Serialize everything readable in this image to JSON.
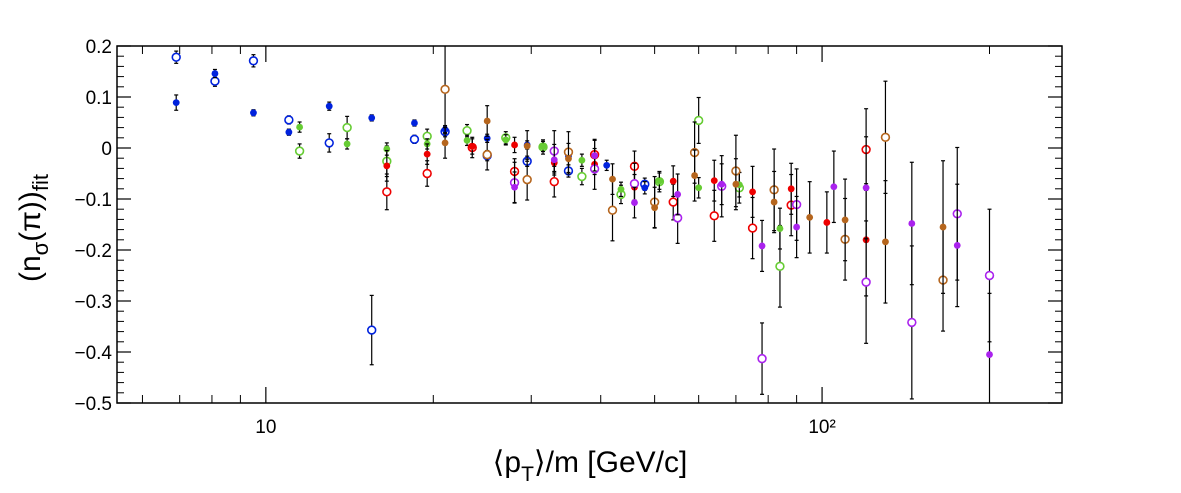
{
  "chart_data": {
    "type": "scatter",
    "xscale": "log",
    "xlim": [
      5.4,
      270
    ],
    "ylim": [
      -0.5,
      0.2
    ],
    "x_ticks": [
      10,
      100
    ],
    "x_tick_labels": [
      "10",
      "10²"
    ],
    "y_ticks": [
      0.2,
      0.1,
      0,
      -0.1,
      -0.2,
      -0.3,
      -0.4,
      -0.5
    ],
    "y_tick_labels": [
      "0.2",
      "0.1",
      "0",
      "−0.1",
      "−0.2",
      "−0.3",
      "−0.4",
      "−0.5"
    ],
    "xlabel": "⟨p_T⟩/m [GeV/c]",
    "ylabel": "(n_σ(π))_fit",
    "grid": false,
    "legend": "none",
    "series": [
      {
        "color": "#0022dd",
        "marker": "open",
        "points": [
          [
            6.9,
            0.178,
            0.012
          ],
          [
            8.1,
            0.131,
            0.01
          ],
          [
            9.5,
            0.171,
            0.012
          ],
          [
            11.0,
            0.055,
            0.008
          ],
          [
            13.0,
            0.01,
            0.018
          ],
          [
            15.5,
            -0.357,
            0.068
          ],
          [
            18.5,
            0.017,
            0.008
          ],
          [
            21.0,
            0.032,
            0.01
          ],
          [
            25.0,
            -0.015,
            0.01
          ],
          [
            29.5,
            -0.026,
            0.01
          ],
          [
            35.0,
            -0.045,
            0.012
          ],
          [
            48.0,
            -0.071,
            0.012
          ]
        ]
      },
      {
        "color": "#0022dd",
        "marker": "filled",
        "points": [
          [
            6.9,
            0.089,
            0.015
          ],
          [
            8.1,
            0.146,
            0.008
          ],
          [
            9.5,
            0.069,
            0.006
          ],
          [
            11.0,
            0.031,
            0.006
          ],
          [
            13.0,
            0.082,
            0.008
          ],
          [
            15.5,
            0.059,
            0.006
          ],
          [
            18.5,
            0.049,
            0.006
          ],
          [
            21.0,
            0.036,
            0.008
          ],
          [
            25.0,
            0.019,
            0.008
          ],
          [
            29.5,
            0.006,
            0.008
          ],
          [
            35.0,
            -0.016,
            0.008
          ],
          [
            41.0,
            -0.034,
            0.01
          ],
          [
            48.0,
            -0.078,
            0.012
          ]
        ]
      },
      {
        "color": "#66cc33",
        "marker": "open",
        "points": [
          [
            11.5,
            -0.006,
            0.014
          ],
          [
            14.0,
            0.04,
            0.022
          ],
          [
            16.5,
            -0.026,
            0.03
          ],
          [
            19.5,
            0.023,
            0.014
          ],
          [
            23.0,
            0.034,
            0.012
          ],
          [
            27.0,
            0.02,
            0.012
          ],
          [
            31.5,
            0.002,
            0.014
          ],
          [
            37.0,
            -0.056,
            0.016
          ],
          [
            43.5,
            -0.091,
            0.018
          ],
          [
            51.0,
            -0.066,
            0.02
          ],
          [
            60.0,
            0.054,
            0.045
          ],
          [
            71.0,
            -0.078,
            0.03
          ],
          [
            84.0,
            -0.232,
            0.08
          ]
        ]
      },
      {
        "color": "#66cc33",
        "marker": "filled",
        "points": [
          [
            11.5,
            0.041,
            0.01
          ],
          [
            14.0,
            0.008,
            0.01
          ],
          [
            16.5,
            -0.002,
            0.012
          ],
          [
            19.5,
            0.008,
            0.01
          ],
          [
            23.0,
            0.015,
            0.01
          ],
          [
            27.0,
            0.016,
            0.01
          ],
          [
            31.5,
            0.003,
            0.01
          ],
          [
            37.0,
            -0.024,
            0.012
          ],
          [
            43.5,
            -0.081,
            0.014
          ],
          [
            51.0,
            -0.065,
            0.016
          ],
          [
            60.0,
            -0.078,
            0.02
          ],
          [
            71.0,
            -0.072,
            0.024
          ],
          [
            84.0,
            -0.158,
            0.04
          ]
        ]
      },
      {
        "color": "#ee0000",
        "marker": "open",
        "points": [
          [
            16.5,
            -0.086,
            0.035
          ],
          [
            19.5,
            -0.05,
            0.025
          ],
          [
            23.5,
            0.001,
            0.02
          ],
          [
            28.0,
            -0.046,
            0.025
          ],
          [
            33.0,
            -0.066,
            0.03
          ],
          [
            39.0,
            -0.013,
            0.03
          ],
          [
            46.0,
            -0.036,
            0.03
          ],
          [
            54.0,
            -0.106,
            0.035
          ],
          [
            64.0,
            -0.133,
            0.05
          ],
          [
            75.0,
            -0.157,
            0.06
          ],
          [
            88.0,
            -0.112,
            0.06
          ],
          [
            120.0,
            -0.003,
            0.08
          ]
        ]
      },
      {
        "color": "#ee0000",
        "marker": "filled",
        "points": [
          [
            16.5,
            -0.035,
            0.03
          ],
          [
            19.5,
            -0.012,
            0.02
          ],
          [
            23.5,
            0.003,
            0.015
          ],
          [
            28.0,
            0.006,
            0.015
          ],
          [
            33.0,
            -0.029,
            0.02
          ],
          [
            39.0,
            -0.032,
            0.02
          ],
          [
            46.0,
            -0.077,
            0.025
          ],
          [
            54.0,
            -0.065,
            0.03
          ],
          [
            64.0,
            -0.064,
            0.04
          ],
          [
            75.0,
            -0.086,
            0.05
          ],
          [
            88.0,
            -0.08,
            0.05
          ],
          [
            102.0,
            -0.146,
            0.06
          ],
          [
            120.0,
            -0.18,
            0.11
          ]
        ]
      },
      {
        "color": "#b5651d",
        "marker": "open",
        "points": [
          [
            21.0,
            0.115,
            0.085
          ],
          [
            25.0,
            -0.013,
            0.03
          ],
          [
            29.5,
            -0.062,
            0.04
          ],
          [
            35.0,
            -0.008,
            0.04
          ],
          [
            42.0,
            -0.122,
            0.06
          ],
          [
            50.0,
            -0.106,
            0.05
          ],
          [
            59.0,
            -0.009,
            0.06
          ],
          [
            70.0,
            -0.045,
            0.07
          ],
          [
            82.0,
            -0.082,
            0.08
          ],
          [
            110.0,
            -0.179,
            0.08
          ],
          [
            130.0,
            0.021,
            0.11
          ],
          [
            165.0,
            -0.259,
            0.1
          ]
        ]
      },
      {
        "color": "#b5651d",
        "marker": "filled",
        "points": [
          [
            21.0,
            0.01,
            0.03
          ],
          [
            25.0,
            0.053,
            0.03
          ],
          [
            29.5,
            0.004,
            0.03
          ],
          [
            35.0,
            -0.021,
            0.03
          ],
          [
            42.0,
            -0.061,
            0.03
          ],
          [
            50.0,
            -0.117,
            0.04
          ],
          [
            59.0,
            -0.054,
            0.05
          ],
          [
            70.0,
            -0.071,
            0.05
          ],
          [
            82.0,
            -0.106,
            0.06
          ],
          [
            95.0,
            -0.136,
            0.07
          ],
          [
            110.0,
            -0.141,
            0.08
          ],
          [
            130.0,
            -0.184,
            0.12
          ],
          [
            165.0,
            -0.155,
            0.13
          ]
        ]
      },
      {
        "color": "#aa22ee",
        "marker": "open",
        "points": [
          [
            28.0,
            -0.068,
            0.04
          ],
          [
            33.0,
            -0.006,
            0.04
          ],
          [
            39.0,
            -0.041,
            0.04
          ],
          [
            46.0,
            -0.07,
            0.04
          ],
          [
            55.0,
            -0.137,
            0.05
          ],
          [
            66.0,
            -0.075,
            0.06
          ],
          [
            78.0,
            -0.413,
            0.07
          ],
          [
            90.0,
            -0.111,
            0.07
          ],
          [
            120.0,
            -0.263,
            0.12
          ],
          [
            145.0,
            -0.342,
            0.15
          ],
          [
            175.0,
            -0.129,
            0.13
          ],
          [
            200.0,
            -0.25,
            0.13
          ]
        ]
      },
      {
        "color": "#aa22ee",
        "marker": "filled",
        "points": [
          [
            28.0,
            -0.077,
            0.03
          ],
          [
            33.0,
            -0.023,
            0.03
          ],
          [
            39.0,
            -0.015,
            0.03
          ],
          [
            46.0,
            -0.107,
            0.03
          ],
          [
            55.0,
            -0.091,
            0.04
          ],
          [
            66.0,
            -0.071,
            0.04
          ],
          [
            78.0,
            -0.192,
            0.05
          ],
          [
            90.0,
            -0.155,
            0.06
          ],
          [
            105.0,
            -0.076,
            0.07
          ],
          [
            120.0,
            -0.078,
            0.1
          ],
          [
            145.0,
            -0.148,
            0.12
          ],
          [
            175.0,
            -0.191,
            0.12
          ],
          [
            200.0,
            -0.405,
            0.12
          ]
        ]
      }
    ]
  }
}
